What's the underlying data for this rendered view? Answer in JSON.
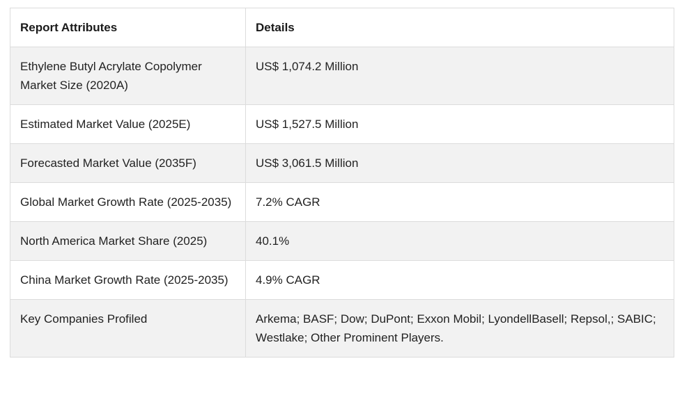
{
  "table": {
    "headers": [
      "Report Attributes",
      "Details"
    ],
    "rows": [
      [
        "Ethylene Butyl Acrylate Copolymer Market Size (2020A)",
        "US$ 1,074.2 Million"
      ],
      [
        "Estimated Market Value (2025E)",
        "US$ 1,527.5 Million"
      ],
      [
        "Forecasted Market Value (2035F)",
        "US$ 3,061.5 Million"
      ],
      [
        "Global Market Growth Rate (2025-2035)",
        "7.2% CAGR"
      ],
      [
        "North America Market Share (2025)",
        "40.1%"
      ],
      [
        "China Market Growth Rate (2025-2035)",
        "4.9% CAGR"
      ],
      [
        "Key Companies Profiled",
        "Arkema; BASF; Dow; DuPont; Exxon Mobil; LyondellBasell; Repsol,; SABIC; Westlake; Other Prominent Players."
      ]
    ]
  }
}
